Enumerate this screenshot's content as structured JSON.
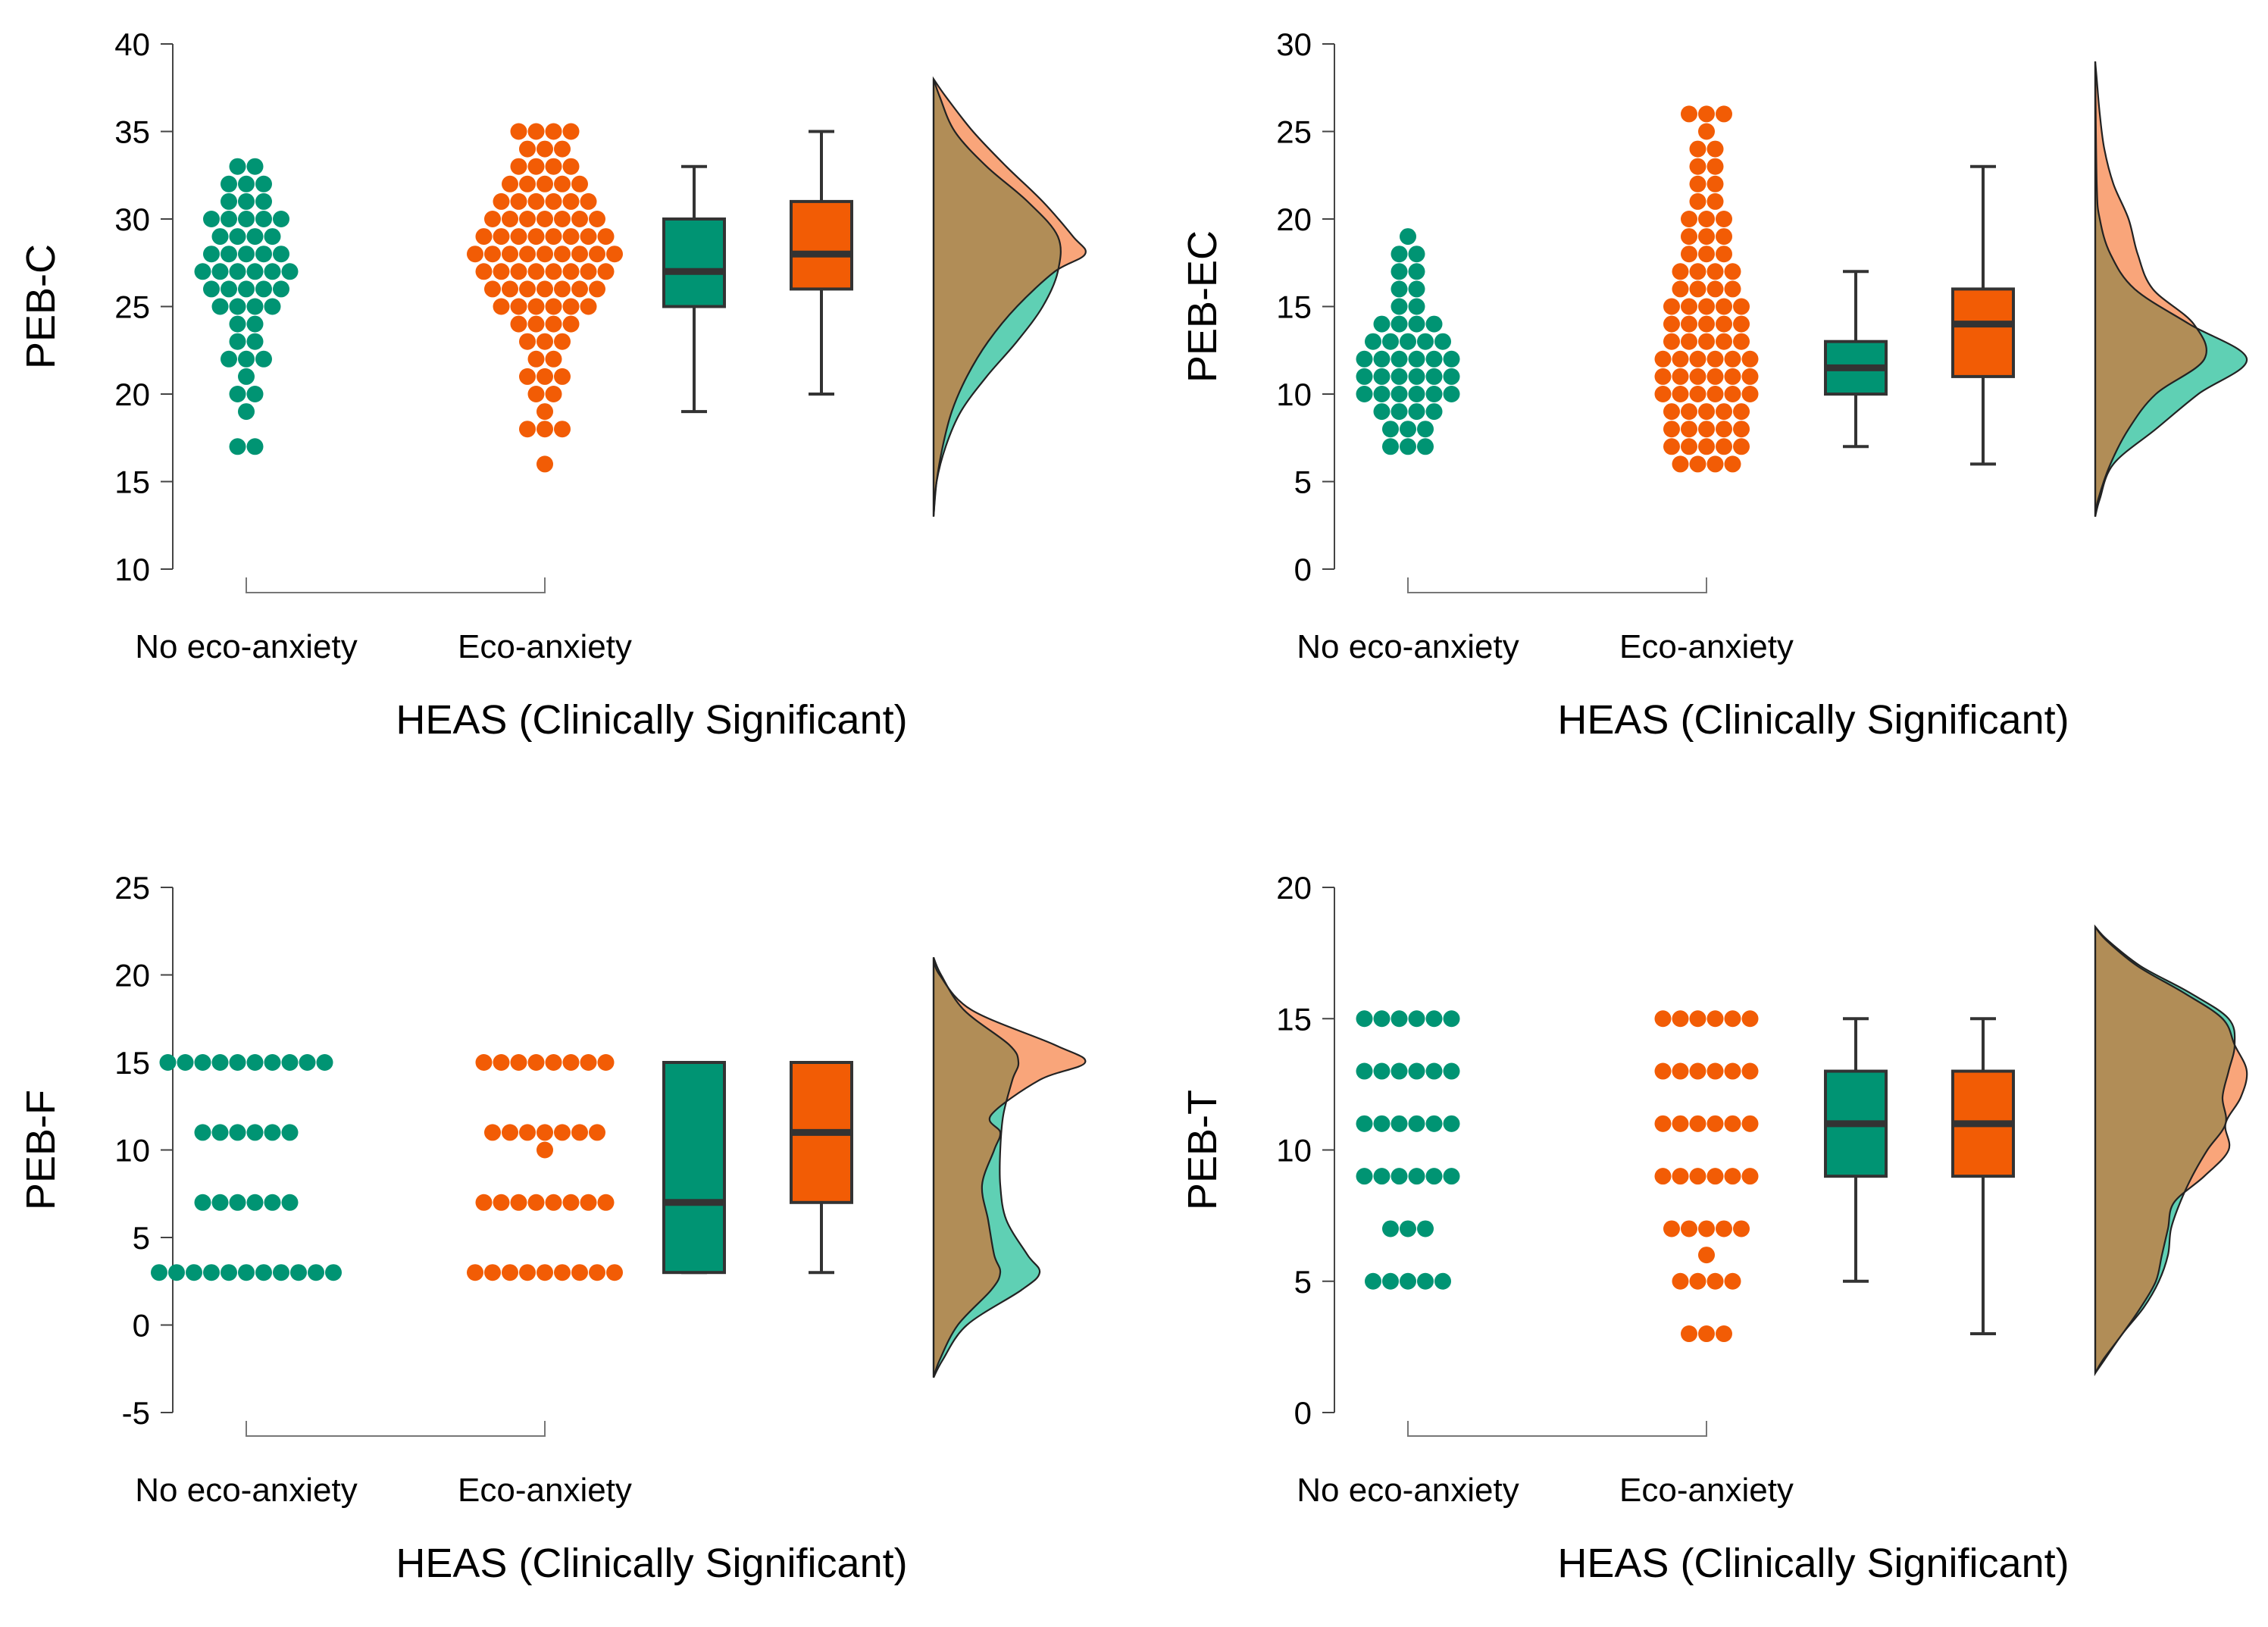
{
  "colors": {
    "no_eco": "#009473",
    "eco": "#F25C05",
    "no_eco_fill": "#5fd0b4",
    "eco_fill": "#f9a57a",
    "overlap": "#b18d57",
    "axis": "#444444"
  },
  "chart_data": [
    {
      "type": "raincloud",
      "ylabel": "PEB-C",
      "xlabel": "HEAS (Clinically Significant)",
      "categories": [
        "No eco-anxiety",
        "Eco-anxiety"
      ],
      "ylim": [
        10,
        40
      ],
      "yticks": [
        10,
        15,
        20,
        25,
        30,
        35,
        40
      ],
      "boxes": [
        {
          "name": "No eco-anxiety",
          "min": 19,
          "q1": 25,
          "median": 27,
          "q3": 30,
          "max": 33
        },
        {
          "name": "Eco-anxiety",
          "min": 20,
          "q1": 26,
          "median": 28,
          "q3": 31,
          "max": 35
        }
      ],
      "points": {
        "No eco-anxiety": [
          17,
          17,
          19,
          20,
          20,
          21,
          22,
          22,
          22,
          23,
          23,
          24,
          24,
          25,
          25,
          25,
          25,
          26,
          26,
          26,
          26,
          26,
          27,
          27,
          27,
          27,
          27,
          27,
          28,
          28,
          28,
          28,
          28,
          29,
          29,
          29,
          29,
          30,
          30,
          30,
          30,
          30,
          31,
          31,
          31,
          32,
          32,
          32,
          33,
          33
        ],
        "Eco-anxiety": [
          16,
          18,
          18,
          18,
          19,
          20,
          20,
          21,
          21,
          21,
          22,
          22,
          23,
          23,
          23,
          24,
          24,
          24,
          24,
          25,
          25,
          25,
          25,
          25,
          25,
          26,
          26,
          26,
          26,
          26,
          26,
          26,
          27,
          27,
          27,
          27,
          27,
          27,
          27,
          27,
          28,
          28,
          28,
          28,
          28,
          28,
          28,
          28,
          28,
          29,
          29,
          29,
          29,
          29,
          29,
          29,
          29,
          30,
          30,
          30,
          30,
          30,
          30,
          30,
          31,
          31,
          31,
          31,
          31,
          31,
          32,
          32,
          32,
          32,
          32,
          33,
          33,
          33,
          33,
          34,
          34,
          34,
          35,
          35,
          35,
          35
        ]
      },
      "density_range": [
        13,
        38
      ],
      "densities": {
        "No eco-anxiety": [
          [
            15,
            2
          ],
          [
            17,
            8
          ],
          [
            19,
            18
          ],
          [
            21,
            35
          ],
          [
            23,
            55
          ],
          [
            25,
            72
          ],
          [
            27,
            82
          ],
          [
            29,
            82
          ],
          [
            31,
            62
          ],
          [
            33,
            35
          ],
          [
            35,
            14
          ],
          [
            37,
            4
          ]
        ],
        "Eco-anxiety": [
          [
            15,
            2
          ],
          [
            17,
            6
          ],
          [
            19,
            12
          ],
          [
            21,
            22
          ],
          [
            23,
            36
          ],
          [
            25,
            55
          ],
          [
            27,
            80
          ],
          [
            28,
            100
          ],
          [
            29,
            92
          ],
          [
            31,
            72
          ],
          [
            33,
            48
          ],
          [
            35,
            26
          ],
          [
            37,
            8
          ]
        ]
      }
    },
    {
      "type": "raincloud",
      "ylabel": "PEB-EC",
      "xlabel": "HEAS (Clinically Significant)",
      "categories": [
        "No eco-anxiety",
        "Eco-anxiety"
      ],
      "ylim": [
        0,
        30
      ],
      "yticks": [
        0,
        5,
        10,
        15,
        20,
        25,
        30
      ],
      "boxes": [
        {
          "name": "No eco-anxiety",
          "min": 7,
          "q1": 10,
          "median": 11.5,
          "q3": 13,
          "max": 17
        },
        {
          "name": "Eco-anxiety",
          "min": 6,
          "q1": 11,
          "median": 14,
          "q3": 16,
          "max": 23
        }
      ],
      "points": {
        "No eco-anxiety": [
          7,
          7,
          7,
          8,
          8,
          8,
          9,
          9,
          9,
          9,
          10,
          10,
          10,
          10,
          10,
          10,
          11,
          11,
          11,
          11,
          11,
          11,
          12,
          12,
          12,
          12,
          12,
          12,
          13,
          13,
          13,
          13,
          13,
          14,
          14,
          14,
          14,
          15,
          15,
          16,
          16,
          17,
          17,
          18,
          18,
          19
        ],
        "Eco-anxiety": [
          6,
          6,
          6,
          6,
          7,
          7,
          7,
          7,
          7,
          8,
          8,
          8,
          8,
          8,
          9,
          9,
          9,
          9,
          9,
          10,
          10,
          10,
          10,
          10,
          10,
          11,
          11,
          11,
          11,
          11,
          11,
          12,
          12,
          12,
          12,
          12,
          12,
          13,
          13,
          13,
          13,
          13,
          14,
          14,
          14,
          14,
          14,
          15,
          15,
          15,
          15,
          15,
          16,
          16,
          16,
          16,
          17,
          17,
          17,
          17,
          18,
          18,
          18,
          19,
          19,
          19,
          20,
          20,
          20,
          21,
          21,
          22,
          22,
          23,
          23,
          24,
          24,
          25,
          26,
          26,
          26
        ]
      },
      "density_range": [
        3,
        29
      ],
      "densities": {
        "No eco-anxiety": [
          [
            4,
            3
          ],
          [
            6,
            12
          ],
          [
            8,
            40
          ],
          [
            10,
            68
          ],
          [
            12,
            100
          ],
          [
            14,
            62
          ],
          [
            16,
            26
          ],
          [
            18,
            10
          ],
          [
            20,
            3
          ],
          [
            22,
            1
          ]
        ],
        "Eco-anxiety": [
          [
            4,
            2
          ],
          [
            6,
            10
          ],
          [
            8,
            22
          ],
          [
            10,
            40
          ],
          [
            12,
            72
          ],
          [
            14,
            65
          ],
          [
            16,
            38
          ],
          [
            18,
            28
          ],
          [
            20,
            22
          ],
          [
            22,
            12
          ],
          [
            24,
            6
          ],
          [
            26,
            3
          ],
          [
            28,
            1
          ]
        ]
      }
    },
    {
      "type": "raincloud",
      "ylabel": "PEB-F",
      "xlabel": "HEAS (Clinically Significant)",
      "categories": [
        "No eco-anxiety",
        "Eco-anxiety"
      ],
      "ylim": [
        -5,
        25
      ],
      "yticks": [
        -5,
        0,
        5,
        10,
        15,
        20,
        25
      ],
      "boxes": [
        {
          "name": "No eco-anxiety",
          "min": 3,
          "q1": 3,
          "median": 7,
          "q3": 15,
          "max": 15
        },
        {
          "name": "Eco-anxiety",
          "min": 3,
          "q1": 7,
          "median": 11,
          "q3": 15,
          "max": 15
        }
      ],
      "points": {
        "No eco-anxiety": [
          3,
          3,
          3,
          3,
          3,
          3,
          3,
          3,
          3,
          3,
          3,
          7,
          7,
          7,
          7,
          7,
          7,
          11,
          11,
          11,
          11,
          11,
          11,
          15,
          15,
          15,
          15,
          15,
          15,
          15,
          15,
          15,
          15
        ],
        "Eco-anxiety": [
          3,
          3,
          3,
          3,
          3,
          3,
          3,
          3,
          3,
          7,
          7,
          7,
          7,
          7,
          7,
          7,
          7,
          10,
          11,
          11,
          11,
          11,
          11,
          11,
          11,
          15,
          15,
          15,
          15,
          15,
          15,
          15,
          15
        ]
      },
      "density_range": [
        -3,
        21
      ],
      "densities": {
        "No eco-anxiety": [
          [
            -2,
            6
          ],
          [
            0,
            22
          ],
          [
            2,
            58
          ],
          [
            3,
            70
          ],
          [
            4,
            62
          ],
          [
            6,
            48
          ],
          [
            8,
            44
          ],
          [
            10,
            44
          ],
          [
            12,
            46
          ],
          [
            14,
            52
          ],
          [
            15,
            56
          ],
          [
            16,
            50
          ],
          [
            18,
            20
          ],
          [
            20,
            5
          ]
        ],
        "Eco-anxiety": [
          [
            -2,
            4
          ],
          [
            0,
            16
          ],
          [
            2,
            38
          ],
          [
            3,
            44
          ],
          [
            4,
            40
          ],
          [
            6,
            36
          ],
          [
            8,
            32
          ],
          [
            10,
            40
          ],
          [
            11,
            44
          ],
          [
            12,
            38
          ],
          [
            14,
            70
          ],
          [
            15,
            100
          ],
          [
            16,
            80
          ],
          [
            18,
            25
          ],
          [
            20,
            4
          ]
        ]
      }
    },
    {
      "type": "raincloud",
      "ylabel": "PEB-T",
      "xlabel": "HEAS (Clinically Significant)",
      "categories": [
        "No eco-anxiety",
        "Eco-anxiety"
      ],
      "ylim": [
        0,
        20
      ],
      "yticks": [
        0,
        5,
        10,
        15,
        20
      ],
      "boxes": [
        {
          "name": "No eco-anxiety",
          "min": 5,
          "q1": 9,
          "median": 11,
          "q3": 13,
          "max": 15
        },
        {
          "name": "Eco-anxiety",
          "min": 3,
          "q1": 9,
          "median": 11,
          "q3": 13,
          "max": 15
        }
      ],
      "points": {
        "No eco-anxiety": [
          5,
          5,
          5,
          5,
          5,
          7,
          7,
          7,
          9,
          9,
          9,
          9,
          9,
          9,
          11,
          11,
          11,
          11,
          11,
          11,
          13,
          13,
          13,
          13,
          13,
          13,
          15,
          15,
          15,
          15,
          15,
          15
        ],
        "Eco-anxiety": [
          3,
          3,
          3,
          5,
          5,
          5,
          5,
          6,
          7,
          7,
          7,
          7,
          7,
          9,
          9,
          9,
          9,
          9,
          9,
          11,
          11,
          11,
          11,
          11,
          11,
          13,
          13,
          13,
          13,
          13,
          13,
          15,
          15,
          15,
          15,
          15,
          15
        ]
      },
      "density_range": [
        1.5,
        18.5
      ],
      "densities": {
        "No eco-anxiety": [
          [
            2,
            6
          ],
          [
            3,
            18
          ],
          [
            4,
            32
          ],
          [
            5,
            42
          ],
          [
            6,
            48
          ],
          [
            7,
            50
          ],
          [
            8,
            56
          ],
          [
            9,
            64
          ],
          [
            10,
            74
          ],
          [
            11,
            86
          ],
          [
            12,
            84
          ],
          [
            13,
            88
          ],
          [
            14,
            92
          ],
          [
            15,
            88
          ],
          [
            16,
            62
          ],
          [
            17,
            30
          ],
          [
            18,
            8
          ]
        ],
        "Eco-anxiety": [
          [
            2,
            5
          ],
          [
            3,
            18
          ],
          [
            4,
            30
          ],
          [
            5,
            40
          ],
          [
            6,
            44
          ],
          [
            7,
            48
          ],
          [
            8,
            52
          ],
          [
            9,
            72
          ],
          [
            10,
            88
          ],
          [
            11,
            86
          ],
          [
            12,
            96
          ],
          [
            13,
            100
          ],
          [
            14,
            92
          ],
          [
            15,
            84
          ],
          [
            16,
            58
          ],
          [
            17,
            28
          ],
          [
            18,
            7
          ]
        ]
      }
    }
  ]
}
